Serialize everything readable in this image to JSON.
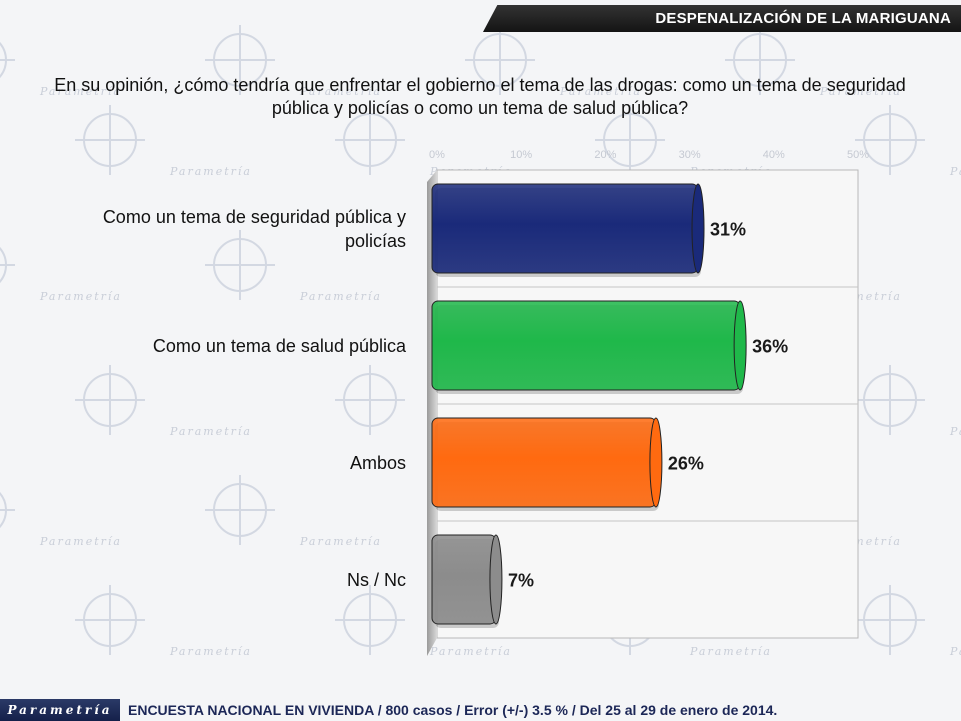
{
  "header": {
    "title": "DESPENALIZACIÓN DE LA MARIGUANA"
  },
  "question": "En su opinión, ¿cómo tendría que enfrentar el gobierno el tema de las drogas: como un tema de seguridad pública y policías o como un tema de salud pública?",
  "watermark": {
    "text": "Parametría"
  },
  "chart_data": {
    "type": "bar",
    "orientation": "horizontal",
    "title": "",
    "xlabel": "",
    "ylabel": "",
    "xlim": [
      0,
      50
    ],
    "xticks": [
      "0%",
      "10%",
      "20%",
      "30%",
      "40%",
      "50%"
    ],
    "grid": true,
    "categories": [
      "Como un tema de seguridad pública y policías",
      "Como un tema de salud pública",
      "Ambos",
      "Ns / Nc"
    ],
    "values": [
      31,
      36,
      26,
      7
    ],
    "value_labels": [
      "31%",
      "36%",
      "26%",
      "7%"
    ],
    "colors": [
      "#1a2a7a",
      "#1fb84a",
      "#ff6a10",
      "#8c8c8c"
    ]
  },
  "footer": {
    "logo": "Parametría",
    "text": "ENCUESTA NACIONAL EN VIVIENDA / 800 casos / Error (+/-) 3.5 % / Del 25 al 29 de enero de 2014."
  }
}
